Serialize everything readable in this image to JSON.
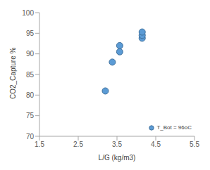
{
  "chart_data": {
    "type": "scatter",
    "x_label": "L/G (kg/m3)",
    "y_label": "CO2_Capture %",
    "xlim": [
      1.5,
      5.5
    ],
    "xticks": [
      1.5,
      2.5,
      3.5,
      4.5,
      5.5
    ],
    "ylim": [
      70,
      100
    ],
    "yticks": [
      70,
      75,
      80,
      85,
      90,
      95,
      100
    ],
    "grid": false,
    "legend": "lower right",
    "series": [
      {
        "name": "T_Bot = 96oC",
        "color": "#5b9bd5",
        "marker": "circle",
        "x": [
          3.2,
          3.38,
          3.57,
          3.57,
          4.15,
          4.15,
          4.15
        ],
        "values": [
          81,
          88,
          90.5,
          92,
          93.8,
          94.5,
          95.3
        ]
      }
    ]
  }
}
